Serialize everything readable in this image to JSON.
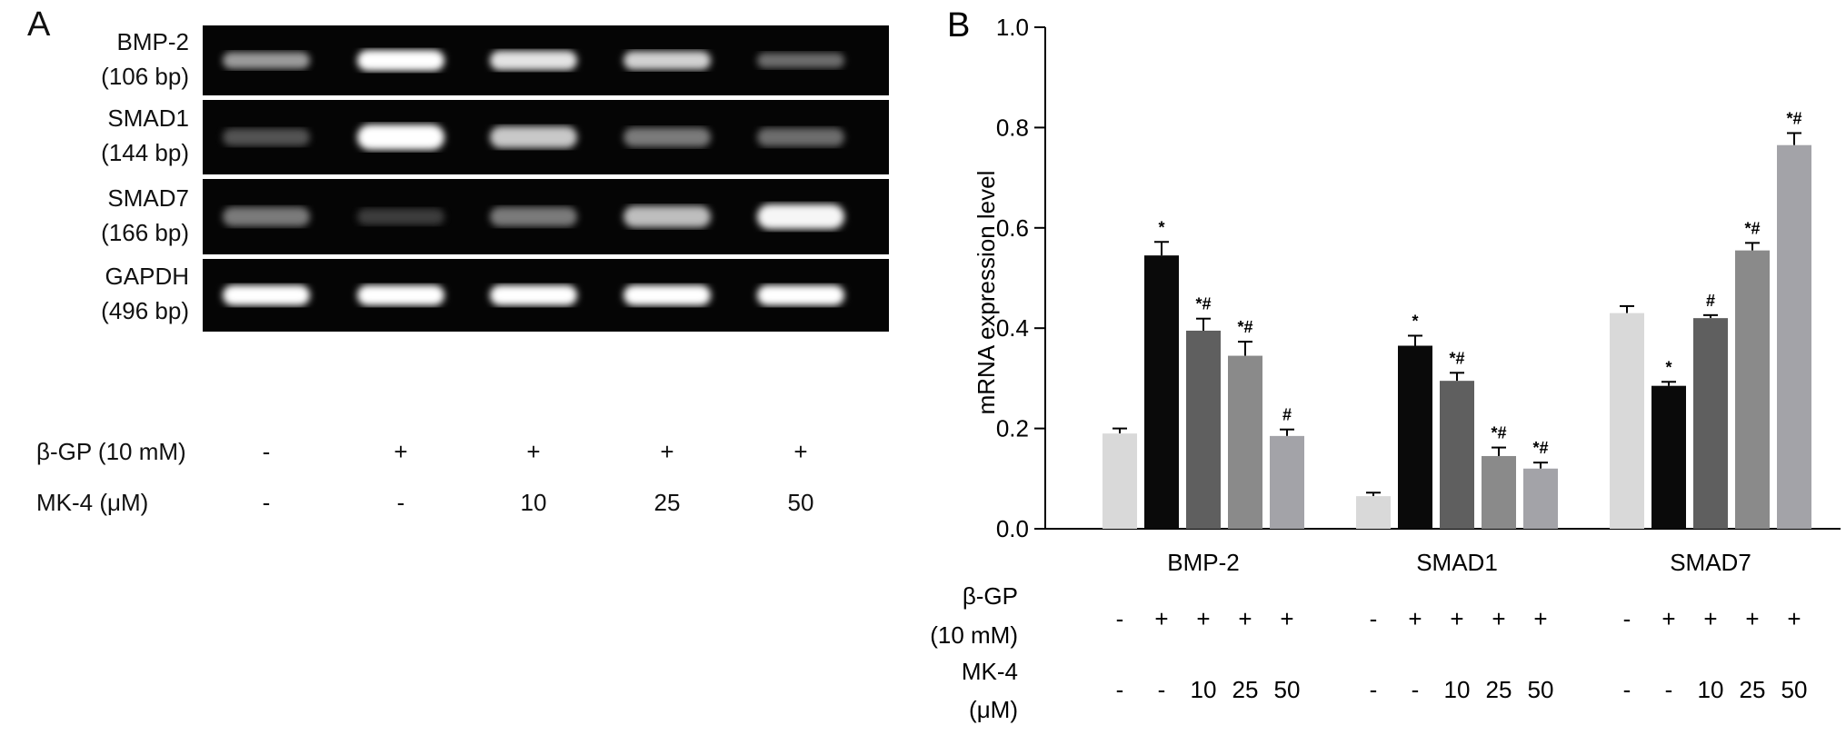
{
  "panel_a": {
    "letter": "A",
    "gels": [
      {
        "gene": "BMP-2",
        "size": "(106 bp)",
        "intensities": [
          0.55,
          1.0,
          0.85,
          0.75,
          0.4
        ],
        "band_height": 0.3
      },
      {
        "gene": "SMAD1",
        "size": "(144 bp)",
        "intensities": [
          0.3,
          1.0,
          0.7,
          0.45,
          0.4
        ],
        "band_height": 0.34
      },
      {
        "gene": "SMAD7",
        "size": "(166 bp)",
        "intensities": [
          0.45,
          0.2,
          0.45,
          0.65,
          0.95
        ],
        "band_height": 0.34
      },
      {
        "gene": "GAPDH",
        "size": "(496 bp)",
        "intensities": [
          1.0,
          1.0,
          1.0,
          1.0,
          1.0
        ],
        "band_height": 0.28
      }
    ],
    "bgp_label": "β-GP (10 mM)",
    "mk4_label": "MK-4 (μM)",
    "bgp_values": [
      "-",
      "+",
      "+",
      "+",
      "+"
    ],
    "mk4_values": [
      "-",
      "-",
      "10",
      "25",
      "50"
    ]
  },
  "chart_data": {
    "type": "bar",
    "panel_letter": "B",
    "title": "",
    "ylabel": "mRNA expression level",
    "ylim": [
      0,
      1.0
    ],
    "yticks": [
      "0.0",
      "0.2",
      "0.4",
      "0.6",
      "0.8",
      "1.0"
    ],
    "categories": [
      "BMP-2",
      "SMAD1",
      "SMAD7"
    ],
    "bar_colors": [
      "#d9d9d9",
      "#0a0a0a",
      "#5f5f5f",
      "#8a8a8a",
      "#a3a3a8"
    ],
    "series": [
      {
        "values": [
          0.19,
          0.065,
          0.43
        ],
        "errors": [
          0.01,
          0.007,
          0.014
        ],
        "marks": [
          "",
          "",
          ""
        ]
      },
      {
        "values": [
          0.545,
          0.365,
          0.285
        ],
        "errors": [
          0.027,
          0.02,
          0.008
        ],
        "marks": [
          "*",
          "*",
          "*"
        ]
      },
      {
        "values": [
          0.395,
          0.295,
          0.42
        ],
        "errors": [
          0.024,
          0.016,
          0.006
        ],
        "marks": [
          "*#",
          "*#",
          "#"
        ]
      },
      {
        "values": [
          0.345,
          0.145,
          0.555
        ],
        "errors": [
          0.028,
          0.017,
          0.015
        ],
        "marks": [
          "*#",
          "*#",
          "*#"
        ]
      },
      {
        "values": [
          0.185,
          0.12,
          0.765
        ],
        "errors": [
          0.013,
          0.012,
          0.024
        ],
        "marks": [
          "#",
          "*#",
          "*#"
        ]
      }
    ],
    "bgp_label_line1": "β-GP",
    "bgp_label_line2": "(10 mM)",
    "mk4_label_line1": "MK-4",
    "mk4_label_line2": "(μM)",
    "bgp_values": [
      "-",
      "+",
      "+",
      "+",
      "+"
    ],
    "mk4_values": [
      "-",
      "-",
      "10",
      "25",
      "50"
    ]
  }
}
